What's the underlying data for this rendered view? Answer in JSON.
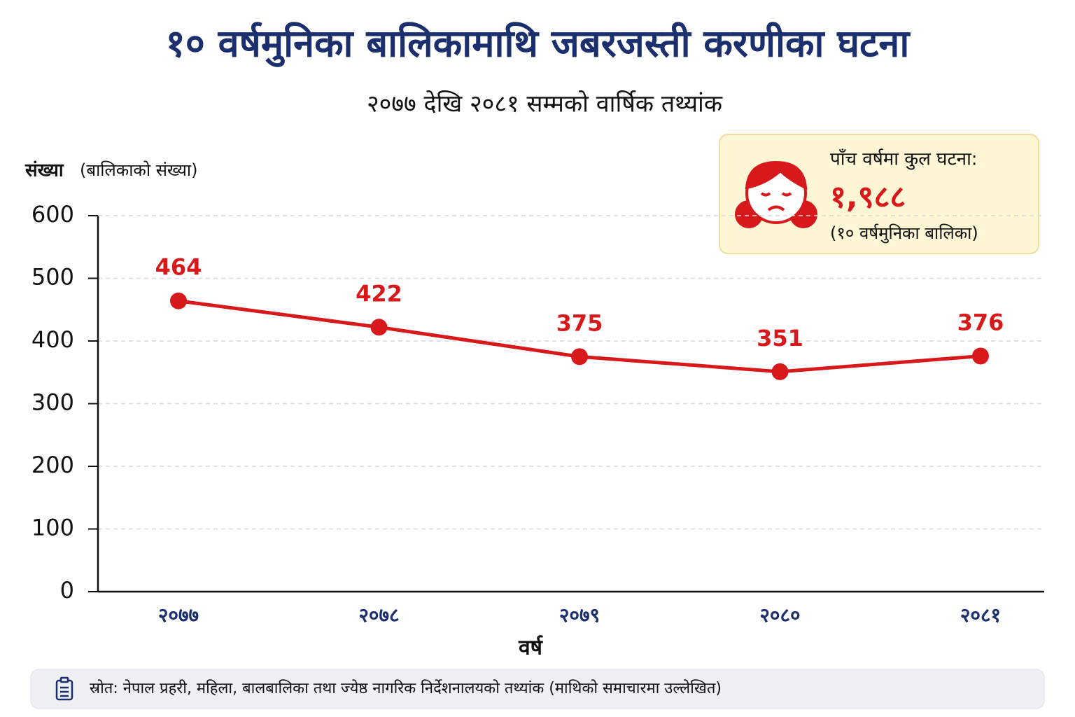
{
  "chart_data": {
    "type": "line",
    "title": "१० वर्षमुनिका बालिकामाथि जबरजस्ती करणीका घटना",
    "subtitle": "२०७७ देखि २०८१ सम्मको वार्षिक तथ्यांक",
    "y_label": "संख्या",
    "y_label_note": "(बालिकाको संख्या)",
    "x_label": "वर्ष",
    "categories": [
      "२०७७",
      "२०७८",
      "२०७९",
      "२०८०",
      "२०८१"
    ],
    "values": [
      464,
      422,
      375,
      351,
      376
    ],
    "color": "#d7191c",
    "ylim": [
      0,
      600
    ],
    "yticks": [
      0,
      100,
      200,
      300,
      400,
      500,
      600
    ],
    "grid": true,
    "annotation": {
      "heading": "पाँच वर्षमा कुल घटना:",
      "total": "१,९८८",
      "note": "(१० वर्षमुनिका बालिका)"
    },
    "source": "स्रोत: नेपाल प्रहरी, महिला, बालबालिका तथा ज्येष्ठ नागरिक निर्देशनालयको तथ्यांक (माथिको समाचारमा उल्लेखित)"
  }
}
